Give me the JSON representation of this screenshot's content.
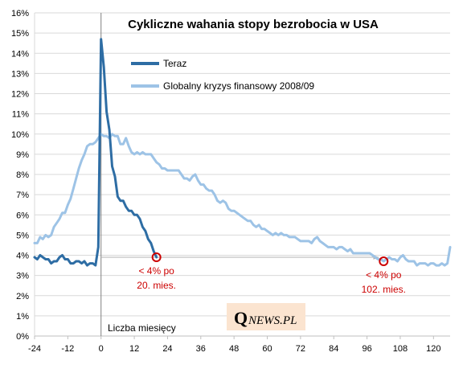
{
  "chart_data": {
    "type": "line",
    "title": "Cykliczne wahania stopy bezrobocia w USA",
    "xlabel": "Liczba miesięcy",
    "ylabel": "",
    "xlim": [
      -24,
      126
    ],
    "ylim": [
      0,
      16
    ],
    "x_ticks": [
      -24,
      -12,
      0,
      12,
      24,
      36,
      48,
      60,
      72,
      84,
      96,
      108,
      120
    ],
    "x_tick_labels": [
      "-24",
      "-12",
      "0",
      "12",
      "24",
      "36",
      "48",
      "60",
      "72",
      "84",
      "96",
      "108",
      "120"
    ],
    "y_ticks": [
      0,
      1,
      2,
      3,
      4,
      5,
      6,
      7,
      8,
      9,
      10,
      11,
      12,
      13,
      14,
      15,
      16
    ],
    "y_tick_labels": [
      "0%",
      "1%",
      "2%",
      "3%",
      "4%",
      "5%",
      "6%",
      "7%",
      "8%",
      "9%",
      "10%",
      "11%",
      "12%",
      "13%",
      "14%",
      "15%",
      "16%"
    ],
    "grid": true,
    "legend_position": "upper-center",
    "series": [
      {
        "name": "Teraz",
        "color": "#2e6da4",
        "x": [
          -24,
          -23,
          -22,
          -21,
          -20,
          -19,
          -18,
          -17,
          -16,
          -15,
          -14,
          -13,
          -12,
          -11,
          -10,
          -9,
          -8,
          -7,
          -6,
          -5,
          -4,
          -3,
          -2,
          -1,
          0,
          1,
          2,
          3,
          4,
          5,
          6,
          7,
          8,
          9,
          10,
          11,
          12,
          13,
          14,
          15,
          16,
          17,
          18,
          19,
          20
        ],
        "y": [
          3.9,
          3.8,
          4.0,
          3.9,
          3.8,
          3.8,
          3.6,
          3.7,
          3.7,
          3.9,
          4.0,
          3.8,
          3.8,
          3.6,
          3.6,
          3.7,
          3.7,
          3.6,
          3.7,
          3.5,
          3.6,
          3.6,
          3.5,
          4.4,
          14.7,
          13.3,
          11.1,
          10.2,
          8.4,
          7.9,
          6.9,
          6.7,
          6.7,
          6.4,
          6.2,
          6.2,
          6.0,
          6.0,
          5.8,
          5.4,
          5.2,
          4.8,
          4.6,
          4.2,
          3.9
        ]
      },
      {
        "name": "Globalny kryzys finansowy 2008/09",
        "color": "#9dc3e6",
        "x": [
          -24,
          -23,
          -22,
          -21,
          -20,
          -19,
          -18,
          -17,
          -16,
          -15,
          -14,
          -13,
          -12,
          -11,
          -10,
          -9,
          -8,
          -7,
          -6,
          -5,
          -4,
          -3,
          -2,
          -1,
          0,
          1,
          2,
          3,
          4,
          5,
          6,
          7,
          8,
          9,
          10,
          11,
          12,
          13,
          14,
          15,
          16,
          17,
          18,
          19,
          20,
          21,
          22,
          23,
          24,
          25,
          26,
          27,
          28,
          29,
          30,
          31,
          32,
          33,
          34,
          35,
          36,
          37,
          38,
          39,
          40,
          41,
          42,
          43,
          44,
          45,
          46,
          47,
          48,
          49,
          50,
          51,
          52,
          53,
          54,
          55,
          56,
          57,
          58,
          59,
          60,
          61,
          62,
          63,
          64,
          65,
          66,
          67,
          68,
          69,
          70,
          71,
          72,
          73,
          74,
          75,
          76,
          77,
          78,
          79,
          80,
          81,
          82,
          83,
          84,
          85,
          86,
          87,
          88,
          89,
          90,
          91,
          92,
          93,
          94,
          95,
          96,
          97,
          98,
          99,
          100,
          101,
          102,
          103,
          104,
          105,
          106,
          107,
          108,
          109,
          110,
          111,
          112,
          113,
          114,
          115,
          116,
          117,
          118,
          119,
          120,
          121,
          122,
          123,
          124,
          125,
          126
        ],
        "y": [
          4.6,
          4.6,
          4.9,
          4.8,
          5.0,
          4.9,
          5.0,
          5.4,
          5.6,
          5.8,
          6.1,
          6.1,
          6.5,
          6.8,
          7.3,
          7.8,
          8.3,
          8.7,
          9.0,
          9.4,
          9.5,
          9.5,
          9.6,
          9.8,
          10.0,
          9.9,
          9.9,
          9.8,
          10.0,
          9.9,
          9.9,
          9.5,
          9.5,
          9.8,
          9.4,
          9.1,
          9.0,
          9.1,
          9.0,
          9.1,
          9.0,
          9.0,
          9.0,
          8.8,
          8.6,
          8.5,
          8.3,
          8.3,
          8.2,
          8.2,
          8.2,
          8.2,
          8.2,
          8.0,
          7.8,
          7.8,
          7.7,
          7.9,
          8.0,
          7.7,
          7.5,
          7.5,
          7.3,
          7.2,
          7.2,
          7.0,
          6.7,
          6.6,
          6.7,
          6.6,
          6.3,
          6.2,
          6.2,
          6.1,
          6.0,
          5.9,
          5.8,
          5.7,
          5.7,
          5.5,
          5.4,
          5.5,
          5.3,
          5.3,
          5.2,
          5.1,
          5.0,
          5.1,
          5.0,
          5.1,
          5.0,
          5.0,
          4.9,
          4.9,
          4.9,
          4.8,
          4.7,
          4.7,
          4.7,
          4.7,
          4.6,
          4.8,
          4.9,
          4.7,
          4.6,
          4.5,
          4.4,
          4.4,
          4.4,
          4.3,
          4.4,
          4.4,
          4.3,
          4.2,
          4.3,
          4.1,
          4.1,
          4.1,
          4.1,
          4.1,
          4.1,
          4.1,
          4.0,
          3.9,
          3.8,
          3.8,
          3.7,
          3.8,
          3.9,
          3.8,
          3.8,
          3.7,
          3.9,
          4.0,
          3.8,
          3.7,
          3.7,
          3.7,
          3.5,
          3.6,
          3.6,
          3.6,
          3.5,
          3.6,
          3.6,
          3.5,
          3.5,
          3.6,
          3.5,
          3.6,
          4.4
        ]
      }
    ],
    "annotations": [
      {
        "lines": [
          "< 4% po",
          "20. mies."
        ],
        "x": 20,
        "y": 3.9,
        "color": "#cc0000"
      },
      {
        "lines": [
          "< 4% po",
          "102. mies."
        ],
        "x": 102,
        "y": 3.7,
        "color": "#cc0000"
      }
    ],
    "reference_lines": [
      {
        "type": "vertical",
        "x": 0,
        "color": "#808080"
      },
      {
        "type": "horizontal",
        "y": 3.9,
        "x_from": 0,
        "x_to": 102,
        "color": "#b0b0b0",
        "arrow": true
      }
    ]
  },
  "logo": {
    "initial": "Q",
    "text": "NEWS.PL",
    "background": "#fbe4d0"
  }
}
